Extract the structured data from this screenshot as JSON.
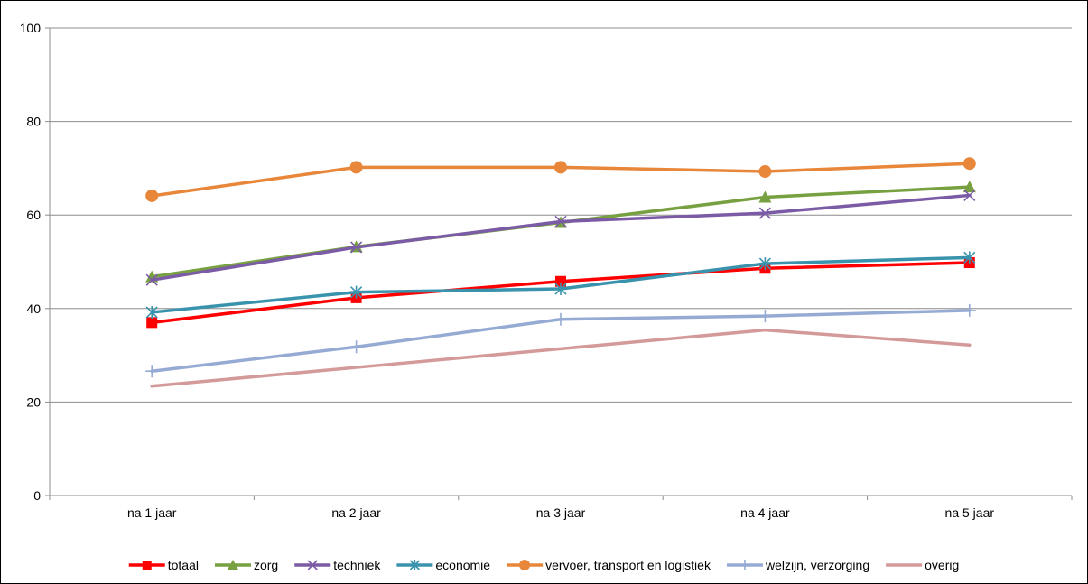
{
  "chart_data": {
    "type": "line",
    "title": "",
    "xlabel": "",
    "ylabel": "",
    "categories": [
      "na 1 jaar",
      "na 2 jaar",
      "na 3 jaar",
      "na 4 jaar",
      "na 5 jaar"
    ],
    "ylim": [
      0,
      100
    ],
    "yticks": [
      0,
      20,
      40,
      60,
      80,
      100
    ],
    "grid": true,
    "legend_position": "bottom",
    "series": [
      {
        "name": "totaal",
        "color": "#ff0000",
        "marker": "square",
        "values": [
          37,
          42.3,
          45.8,
          48.6,
          49.8
        ]
      },
      {
        "name": "zorg",
        "color": "#77a040",
        "marker": "triangle",
        "values": [
          46.8,
          53.2,
          58.4,
          63.8,
          66
        ]
      },
      {
        "name": "techniek",
        "color": "#7b5aa6",
        "marker": "x",
        "values": [
          46.1,
          53.1,
          58.6,
          60.4,
          64.2
        ]
      },
      {
        "name": "economie",
        "color": "#3a93ac",
        "marker": "star",
        "values": [
          39.2,
          43.5,
          44.2,
          49.6,
          50.9
        ]
      },
      {
        "name": "vervoer, transport en logistiek",
        "color": "#e8863a",
        "marker": "circle",
        "values": [
          64.1,
          70.2,
          70.2,
          69.3,
          71
        ]
      },
      {
        "name": "welzijn, verzorging",
        "color": "#96abd4",
        "marker": "plus",
        "values": [
          26.6,
          31.8,
          37.7,
          38.4,
          39.6
        ]
      },
      {
        "name": "overig",
        "color": "#d49a9a",
        "marker": "none",
        "values": [
          23.4,
          27.4,
          31.4,
          35.4,
          32.2
        ]
      }
    ]
  }
}
